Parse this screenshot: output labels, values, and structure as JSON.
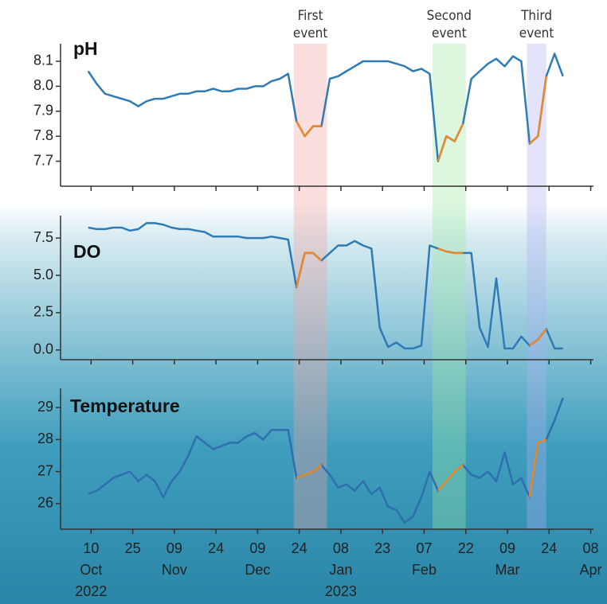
{
  "events": [
    {
      "label": [
        "First",
        "event"
      ],
      "start": "2022-12-22",
      "end": "2023-01-03",
      "color": "#f4a0a0"
    },
    {
      "label": [
        "Second",
        "event"
      ],
      "start": "2023-02-10",
      "end": "2023-02-22",
      "color": "#9fe8a2"
    },
    {
      "label": [
        "Third",
        "event"
      ],
      "start": "2023-03-16",
      "end": "2023-03-23",
      "color": "#b0b0f4"
    }
  ],
  "event_color": "#e8892b",
  "x_axis": {
    "xlim": [
      "2022-09-29",
      "2023-04-09"
    ],
    "xticks": [
      {
        "value": "2022-10-10",
        "label": "10"
      },
      {
        "value": "2022-10-25",
        "label": "25"
      },
      {
        "value": "2022-11-09",
        "label": "09"
      },
      {
        "value": "2022-11-24",
        "label": "24"
      },
      {
        "value": "2022-12-09",
        "label": "09"
      },
      {
        "value": "2022-12-24",
        "label": "24"
      },
      {
        "value": "2023-01-08",
        "label": "08"
      },
      {
        "value": "2023-01-23",
        "label": "23"
      },
      {
        "value": "2023-02-07",
        "label": "07"
      },
      {
        "value": "2023-02-22",
        "label": "22"
      },
      {
        "value": "2023-03-09",
        "label": "09"
      },
      {
        "value": "2023-03-24",
        "label": "24"
      },
      {
        "value": "2023-04-08",
        "label": "08"
      }
    ],
    "month_labels": [
      {
        "value": "2022-10-10",
        "label": "Oct"
      },
      {
        "value": "2022-11-09",
        "label": "Nov"
      },
      {
        "value": "2022-12-09",
        "label": "Dec"
      },
      {
        "value": "2023-01-08",
        "label": "Jan"
      },
      {
        "value": "2023-02-07",
        "label": "Feb"
      },
      {
        "value": "2023-03-09",
        "label": "Mar"
      },
      {
        "value": "2023-04-08",
        "label": "Apr"
      }
    ],
    "year_labels": [
      {
        "value": "2022-10-10",
        "label": "2022"
      },
      {
        "value": "2023-01-08",
        "label": "2023"
      }
    ]
  },
  "chart_data": [
    {
      "type": "line",
      "title": "pH",
      "color": "#2f7bb5",
      "x": [
        "2022-10-09",
        "2022-10-12",
        "2022-10-15",
        "2022-10-18",
        "2022-10-21",
        "2022-10-24",
        "2022-10-27",
        "2022-10-30",
        "2022-11-02",
        "2022-11-05",
        "2022-11-08",
        "2022-11-11",
        "2022-11-14",
        "2022-11-17",
        "2022-11-20",
        "2022-11-23",
        "2022-11-26",
        "2022-11-29",
        "2022-12-02",
        "2022-12-05",
        "2022-12-08",
        "2022-12-11",
        "2022-12-14",
        "2022-12-17",
        "2022-12-20",
        "2022-12-23",
        "2022-12-26",
        "2022-12-29",
        "2023-01-01",
        "2023-01-04",
        "2023-01-07",
        "2023-01-10",
        "2023-01-13",
        "2023-01-16",
        "2023-01-19",
        "2023-01-22",
        "2023-01-25",
        "2023-01-28",
        "2023-01-31",
        "2023-02-03",
        "2023-02-06",
        "2023-02-09",
        "2023-02-12",
        "2023-02-15",
        "2023-02-18",
        "2023-02-21",
        "2023-02-24",
        "2023-02-27",
        "2023-03-02",
        "2023-03-05",
        "2023-03-08",
        "2023-03-11",
        "2023-03-14",
        "2023-03-17",
        "2023-03-20",
        "2023-03-23",
        "2023-03-26",
        "2023-03-29"
      ],
      "values": [
        8.06,
        8.01,
        7.97,
        7.96,
        7.95,
        7.94,
        7.92,
        7.94,
        7.95,
        7.95,
        7.96,
        7.97,
        7.97,
        7.98,
        7.98,
        7.99,
        7.98,
        7.98,
        7.99,
        7.99,
        8.0,
        8.0,
        8.02,
        8.03,
        8.05,
        7.86,
        7.8,
        7.84,
        7.84,
        8.03,
        8.04,
        8.06,
        8.08,
        8.1,
        8.1,
        8.1,
        8.1,
        8.09,
        8.08,
        8.06,
        8.07,
        8.05,
        7.7,
        7.8,
        7.78,
        7.85,
        8.03,
        8.06,
        8.09,
        8.11,
        8.08,
        8.12,
        8.1,
        7.77,
        7.8,
        8.04,
        8.13,
        8.04
      ],
      "ylim": [
        7.6,
        8.17
      ],
      "yticks": [
        7.7,
        7.8,
        7.9,
        {
          "value": 8,
          "label": "8.0"
        },
        8.1
      ]
    },
    {
      "type": "line",
      "title": "DO",
      "color": "#2f7bb5",
      "x": [
        "2022-10-09",
        "2022-10-12",
        "2022-10-15",
        "2022-10-18",
        "2022-10-21",
        "2022-10-24",
        "2022-10-27",
        "2022-10-30",
        "2022-11-02",
        "2022-11-05",
        "2022-11-08",
        "2022-11-11",
        "2022-11-14",
        "2022-11-17",
        "2022-11-20",
        "2022-11-23",
        "2022-11-26",
        "2022-11-29",
        "2022-12-02",
        "2022-12-05",
        "2022-12-08",
        "2022-12-11",
        "2022-12-14",
        "2022-12-17",
        "2022-12-20",
        "2022-12-23",
        "2022-12-26",
        "2022-12-29",
        "2023-01-01",
        "2023-01-04",
        "2023-01-07",
        "2023-01-10",
        "2023-01-13",
        "2023-01-16",
        "2023-01-19",
        "2023-01-22",
        "2023-01-25",
        "2023-01-28",
        "2023-01-31",
        "2023-02-03",
        "2023-02-06",
        "2023-02-09",
        "2023-02-12",
        "2023-02-15",
        "2023-02-18",
        "2023-02-21",
        "2023-02-24",
        "2023-02-27",
        "2023-03-02",
        "2023-03-05",
        "2023-03-08",
        "2023-03-11",
        "2023-03-14",
        "2023-03-17",
        "2023-03-20",
        "2023-03-23",
        "2023-03-26",
        "2023-03-29"
      ],
      "values": [
        8.2,
        8.1,
        8.1,
        8.2,
        8.2,
        8.0,
        8.1,
        8.5,
        8.5,
        8.4,
        8.2,
        8.1,
        8.1,
        8.0,
        7.9,
        7.6,
        7.6,
        7.6,
        7.6,
        7.5,
        7.5,
        7.5,
        7.6,
        7.5,
        7.4,
        4.2,
        6.5,
        6.5,
        6.0,
        6.5,
        7.0,
        7.0,
        7.3,
        7.0,
        6.8,
        1.5,
        0.2,
        0.5,
        0.1,
        0.1,
        0.3,
        7.0,
        6.8,
        6.6,
        6.5,
        6.5,
        6.5,
        1.5,
        0.2,
        4.8,
        0.1,
        0.1,
        0.9,
        0.3,
        0.7,
        1.4,
        0.1,
        0.1
      ],
      "ylim": [
        -0.65,
        9
      ],
      "yticks": [
        {
          "value": 0,
          "label": "0.0"
        },
        2.5,
        {
          "value": 5,
          "label": "5.0"
        },
        7.5
      ]
    },
    {
      "type": "line",
      "title": "Temperature",
      "color": "#2f6fb0",
      "x": [
        "2022-10-09",
        "2022-10-12",
        "2022-10-15",
        "2022-10-18",
        "2022-10-21",
        "2022-10-24",
        "2022-10-27",
        "2022-10-30",
        "2022-11-02",
        "2022-11-05",
        "2022-11-08",
        "2022-11-11",
        "2022-11-14",
        "2022-11-17",
        "2022-11-20",
        "2022-11-23",
        "2022-11-26",
        "2022-11-29",
        "2022-12-02",
        "2022-12-05",
        "2022-12-08",
        "2022-12-11",
        "2022-12-14",
        "2022-12-17",
        "2022-12-20",
        "2022-12-23",
        "2022-12-26",
        "2022-12-29",
        "2023-01-01",
        "2023-01-04",
        "2023-01-07",
        "2023-01-10",
        "2023-01-13",
        "2023-01-16",
        "2023-01-19",
        "2023-01-22",
        "2023-01-25",
        "2023-01-28",
        "2023-01-31",
        "2023-02-03",
        "2023-02-06",
        "2023-02-09",
        "2023-02-12",
        "2023-02-15",
        "2023-02-18",
        "2023-02-21",
        "2023-02-24",
        "2023-02-27",
        "2023-03-02",
        "2023-03-05",
        "2023-03-08",
        "2023-03-11",
        "2023-03-14",
        "2023-03-17",
        "2023-03-20",
        "2023-03-23",
        "2023-03-26",
        "2023-03-29"
      ],
      "values": [
        26.3,
        26.4,
        26.6,
        26.8,
        26.9,
        27.0,
        26.7,
        26.9,
        26.7,
        26.2,
        26.7,
        27.0,
        27.5,
        28.1,
        27.9,
        27.7,
        27.8,
        27.9,
        27.9,
        28.1,
        28.2,
        28.0,
        28.3,
        28.3,
        28.3,
        26.8,
        26.9,
        27.0,
        27.2,
        26.9,
        26.5,
        26.6,
        26.4,
        26.7,
        26.3,
        26.5,
        25.9,
        25.8,
        25.4,
        25.6,
        26.2,
        27.0,
        26.4,
        26.7,
        27.0,
        27.2,
        26.9,
        26.8,
        27.0,
        26.7,
        27.6,
        26.6,
        26.8,
        26.2,
        27.9,
        28.0,
        28.6,
        29.3
      ],
      "ylim": [
        25.2,
        29.6
      ],
      "yticks": [
        26,
        27,
        28,
        29
      ]
    }
  ]
}
